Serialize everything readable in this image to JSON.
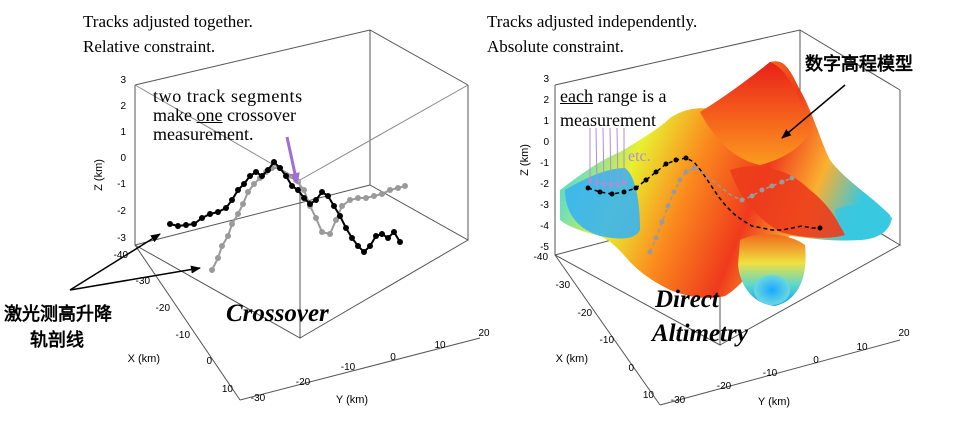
{
  "left_panel": {
    "caption_line1": "Tracks adjusted together.",
    "caption_line2": "Relative constraint.",
    "note_line1": "two track segments",
    "note_line2_pre": "make ",
    "note_line2_u": "one",
    "note_line2_post": " crossover",
    "note_line3": "measurement.",
    "method_label": "Crossover",
    "track_label_line1": "激光测高升降",
    "track_label_line2": "轨剖线",
    "z_axis_label": "Z (km)",
    "x_axis_label": "X (km)",
    "y_axis_label": "Y (km)",
    "z_ticks": [
      "3",
      "2",
      "1",
      "0",
      "-1",
      "-2",
      "-3"
    ],
    "x_ticks": [
      "-40",
      "-30",
      "-20",
      "-10",
      "0",
      "10"
    ],
    "y_ticks": [
      "-30",
      "-20",
      "-10",
      "0",
      "10",
      "20"
    ]
  },
  "right_panel": {
    "caption_line1": "Tracks adjusted independently.",
    "caption_line2": "Absolute constraint.",
    "note_line1_u": "each",
    "note_line1_post": " range is a",
    "note_line2": "measurement",
    "note_etc": "etc.",
    "method_label_line1": "Direct",
    "method_label_line2": "Altimetry",
    "dem_label": "数字高程模型",
    "z_axis_label": "Z (km)",
    "x_axis_label": "X (km)",
    "y_axis_label": "Y (km)",
    "z_ticks": [
      "3",
      "2",
      "1",
      "0",
      "-1",
      "-2",
      "-3",
      "-4",
      "-5"
    ],
    "x_ticks": [
      "-40",
      "-30",
      "-20",
      "-10",
      "0",
      "10"
    ],
    "y_ticks": [
      "-30",
      "-20",
      "-10",
      "0",
      "10",
      "20"
    ]
  },
  "colors": {
    "black_track": "#000000",
    "gray_track": "#9a9a9a",
    "arrow_violet": "#a070d0",
    "etc_text": "#b08cd8"
  }
}
